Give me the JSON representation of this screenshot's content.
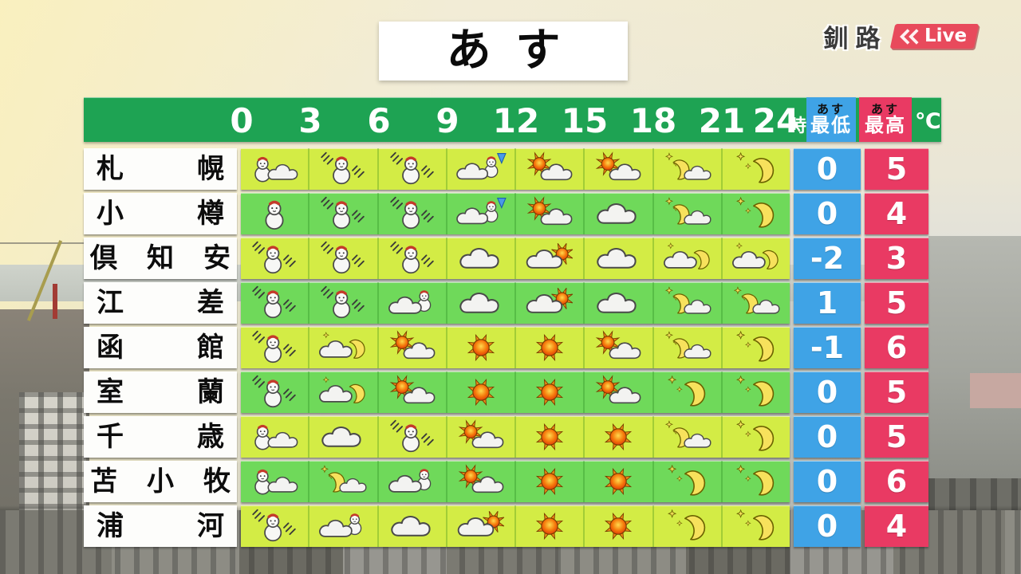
{
  "title": "あす",
  "station": {
    "name": "釧路",
    "live": "Live",
    "chevrons_icon": "double-chevron-left"
  },
  "colors": {
    "header_green": "#1ea353",
    "row_yellowgreen": "#d3ec45",
    "row_green": "#6fd95a",
    "low_blue": "#3fa3e6",
    "high_red": "#e93a63",
    "live_badge_red": "#e84a5c"
  },
  "chart_data": {
    "type": "table",
    "title": "あす",
    "hours": [
      "0",
      "3",
      "6",
      "9",
      "12",
      "15",
      "18",
      "21",
      "24"
    ],
    "hour_unit": "時",
    "temp_unit": "℃",
    "low_label": {
      "top": "あす",
      "bottom": "最低"
    },
    "high_label": {
      "top": "あす",
      "bottom": "最高"
    },
    "icon_legend": {
      "snowman": "snow",
      "snowman-wind": "snow-with-wind",
      "snowman-cloud": "snow-then-cloudy",
      "cloud-snowman": "cloudy-with-snow",
      "cloud-snowman-arrow": "cloudy-changing-to-snow",
      "cloud": "cloudy",
      "sun-cloud": "sunny-then-cloudy",
      "cloud-sun": "cloudy-with-sun",
      "sun": "sunny",
      "moon-cloud": "clear-night-then-cloudy",
      "cloud-moon": "cloudy-night-with-moon",
      "moon-stars": "clear-night"
    },
    "rows": [
      {
        "city": "札幌",
        "icons": [
          "snowman-cloud",
          "snowman-wind",
          "snowman-wind",
          "cloud-snowman-arrow",
          "sun-cloud",
          "sun-cloud",
          "moon-cloud",
          "moon-stars"
        ],
        "low": "0",
        "high": "5"
      },
      {
        "city": "小樽",
        "icons": [
          "snowman",
          "snowman-wind",
          "snowman-wind",
          "cloud-snowman-arrow",
          "sun-cloud",
          "cloud",
          "moon-cloud",
          "moon-stars"
        ],
        "low": "0",
        "high": "4"
      },
      {
        "city": "倶知安",
        "icons": [
          "snowman-wind",
          "snowman-wind",
          "snowman-wind",
          "cloud",
          "cloud-sun",
          "cloud",
          "cloud-moon",
          "cloud-moon"
        ],
        "low": "-2",
        "high": "3"
      },
      {
        "city": "江差",
        "icons": [
          "snowman-wind",
          "snowman-wind",
          "cloud-snowman",
          "cloud",
          "cloud-sun",
          "cloud",
          "moon-cloud",
          "moon-cloud"
        ],
        "low": "1",
        "high": "5"
      },
      {
        "city": "函館",
        "icons": [
          "snowman-wind",
          "cloud-moon",
          "sun-cloud",
          "sun",
          "sun",
          "sun-cloud",
          "moon-cloud",
          "moon-stars"
        ],
        "low": "-1",
        "high": "6"
      },
      {
        "city": "室蘭",
        "icons": [
          "snowman-wind",
          "cloud-moon",
          "sun-cloud",
          "sun",
          "sun",
          "sun-cloud",
          "moon-stars",
          "moon-stars"
        ],
        "low": "0",
        "high": "5"
      },
      {
        "city": "千歳",
        "icons": [
          "snowman-cloud",
          "cloud",
          "snowman-wind",
          "sun-cloud",
          "sun",
          "sun",
          "moon-cloud",
          "moon-stars"
        ],
        "low": "0",
        "high": "5"
      },
      {
        "city": "苫小牧",
        "icons": [
          "snowman-cloud",
          "moon-cloud",
          "cloud-snowman",
          "sun-cloud",
          "sun",
          "sun",
          "moon-stars",
          "moon-stars"
        ],
        "low": "0",
        "high": "6"
      },
      {
        "city": "浦河",
        "icons": [
          "snowman-wind",
          "cloud-snowman",
          "cloud",
          "cloud-sun",
          "sun",
          "sun",
          "moon-stars",
          "moon-stars"
        ],
        "low": "0",
        "high": "4"
      }
    ]
  }
}
